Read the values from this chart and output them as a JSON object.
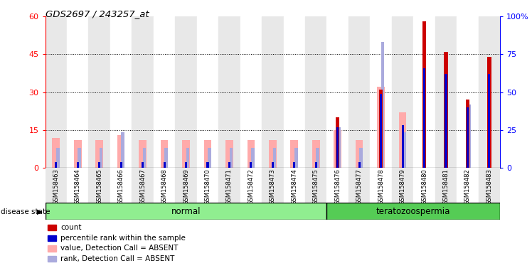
{
  "title": "GDS2697 / 243257_at",
  "samples": [
    "GSM158463",
    "GSM158464",
    "GSM158465",
    "GSM158466",
    "GSM158467",
    "GSM158468",
    "GSM158469",
    "GSM158470",
    "GSM158471",
    "GSM158472",
    "GSM158473",
    "GSM158474",
    "GSM158475",
    "GSM158476",
    "GSM158477",
    "GSM158478",
    "GSM158479",
    "GSM158480",
    "GSM158481",
    "GSM158482",
    "GSM158483"
  ],
  "count": [
    0,
    0,
    0,
    0,
    0,
    0,
    0,
    0,
    0,
    0,
    0,
    0,
    0,
    20,
    0,
    31,
    0,
    58,
    46,
    27,
    44
  ],
  "percentile_rank": [
    4,
    4,
    4,
    4,
    4,
    4,
    4,
    4,
    4,
    4,
    4,
    4,
    4,
    27,
    4,
    49,
    28,
    66,
    62,
    40,
    62
  ],
  "value_absent": [
    12,
    11,
    11,
    13,
    11,
    11,
    11,
    11,
    11,
    11,
    11,
    11,
    11,
    15,
    11,
    32,
    22,
    0,
    0,
    0,
    0
  ],
  "rank_absent": [
    8,
    8,
    8,
    14,
    8,
    8,
    8,
    8,
    8,
    8,
    8,
    8,
    8,
    16,
    8,
    50,
    14,
    0,
    0,
    25,
    0
  ],
  "group": [
    "normal",
    "normal",
    "normal",
    "normal",
    "normal",
    "normal",
    "normal",
    "normal",
    "normal",
    "normal",
    "normal",
    "normal",
    "normal",
    "teratozoospermia",
    "teratozoospermia",
    "teratozoospermia",
    "teratozoospermia",
    "teratozoospermia",
    "teratozoospermia",
    "teratozoospermia",
    "teratozoospermia"
  ],
  "normal_label": "normal",
  "tera_label": "teratozoospermia",
  "disease_state_label": "disease state",
  "left_ylim": [
    0,
    60
  ],
  "right_ylim": [
    0,
    100
  ],
  "left_yticks": [
    0,
    15,
    30,
    45,
    60
  ],
  "right_yticks": [
    0,
    25,
    50,
    75,
    100
  ],
  "count_color": "#cc0000",
  "percentile_color": "#0000cc",
  "value_absent_color": "#ffaaaa",
  "rank_absent_color": "#aaaadd",
  "normal_color": "#90ee90",
  "tera_color": "#55cc55",
  "legend_items": [
    "count",
    "percentile rank within the sample",
    "value, Detection Call = ABSENT",
    "rank, Detection Call = ABSENT"
  ],
  "legend_colors": [
    "#cc0000",
    "#0000cc",
    "#ffaaaa",
    "#aaaadd"
  ]
}
